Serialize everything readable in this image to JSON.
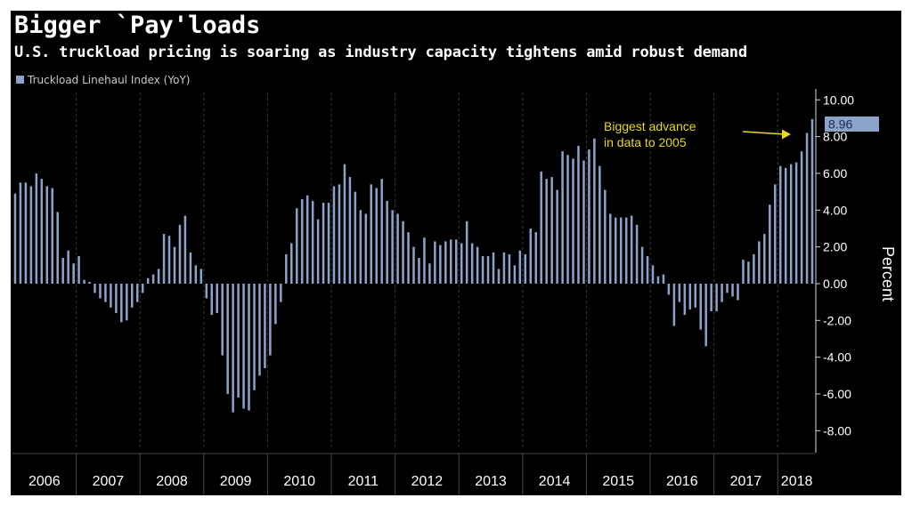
{
  "title": "Bigger `Pay'loads",
  "subtitle": "U.S. truckload pricing is soaring as industry capacity tightens amid robust demand",
  "legend_label": "Truckload Linehaul Index (YoY)",
  "last_value_label": "8.96",
  "annotation": {
    "line1": "Biggest advance",
    "line2": "in data to 2005"
  },
  "colors": {
    "background": "#000000",
    "bar": "#8ca3c9",
    "annotation": "#e8d820",
    "gridline": "#3a3a3a",
    "text": "#ffffff"
  },
  "chart_data": {
    "type": "bar",
    "frequency": "monthly",
    "start": "2006-01",
    "end": "2018-03",
    "ylabel": "Percent",
    "ylim": [
      -9,
      10.4
    ],
    "yticks": [
      10,
      8,
      6,
      4,
      2,
      0,
      -2,
      -4,
      -6,
      -8
    ],
    "ytick_labels": [
      "10.00",
      "8.00",
      "6.00",
      "4.00",
      "2.00",
      "0.00",
      "-2.00",
      "-4.00",
      "-6.00",
      "-8.00"
    ],
    "x_axis_labels": [
      "2006",
      "2007",
      "2008",
      "2009",
      "2010",
      "2011",
      "2012",
      "2013",
      "2014",
      "2015",
      "2016",
      "2017",
      "2018"
    ],
    "series": [
      {
        "name": "Truckload Linehaul Index (YoY)",
        "values": [
          4.9,
          5.5,
          5.5,
          5.3,
          6.0,
          5.7,
          5.3,
          5.2,
          3.9,
          1.4,
          1.8,
          1.1,
          1.5,
          0.2,
          0.1,
          -0.5,
          -0.8,
          -1.0,
          -1.3,
          -1.6,
          -2.1,
          -2.0,
          -1.3,
          -1.0,
          -0.5,
          0.3,
          0.5,
          0.8,
          2.7,
          2.6,
          2.0,
          3.2,
          3.7,
          1.7,
          1.0,
          0.8,
          -0.8,
          -1.7,
          -1.6,
          -3.9,
          -6.0,
          -7.0,
          -6.2,
          -6.8,
          -6.9,
          -5.8,
          -5.0,
          -4.6,
          -3.9,
          -2.2,
          -1.0,
          1.6,
          2.2,
          4.1,
          4.6,
          4.8,
          4.5,
          3.5,
          4.4,
          4.4,
          5.3,
          5.4,
          6.5,
          5.8,
          5.0,
          4.0,
          3.8,
          5.4,
          5.2,
          5.7,
          4.5,
          4.0,
          3.8,
          3.4,
          2.8,
          2.0,
          1.4,
          2.5,
          1.1,
          2.3,
          2.1,
          2.3,
          2.4,
          2.4,
          2.2,
          3.4,
          2.2,
          2.0,
          1.5,
          1.5,
          1.7,
          0.8,
          1.7,
          1.6,
          1.0,
          1.8,
          1.6,
          3.0,
          2.8,
          6.1,
          5.7,
          5.8,
          5.1,
          7.2,
          7.0,
          6.8,
          7.5,
          6.7,
          7.3,
          7.9,
          6.4,
          5.1,
          3.8,
          3.6,
          3.6,
          3.6,
          3.7,
          3.2,
          2.0,
          1.5,
          1.0,
          0.4,
          0.5,
          -0.6,
          -2.3,
          -1.0,
          -1.7,
          -1.4,
          -1.3,
          -2.5,
          -3.4,
          -1.5,
          -1.5,
          -1.0,
          -0.5,
          -0.7,
          -0.9,
          1.3,
          1.2,
          1.6,
          2.3,
          2.7,
          4.3,
          5.4,
          6.4,
          6.3,
          6.5,
          6.6,
          7.2,
          8.2,
          8.96
        ]
      }
    ],
    "grid": true,
    "grid_style": "vertical dashed lines at year boundaries",
    "legend_position": "top-left",
    "y_axis_side": "right"
  }
}
